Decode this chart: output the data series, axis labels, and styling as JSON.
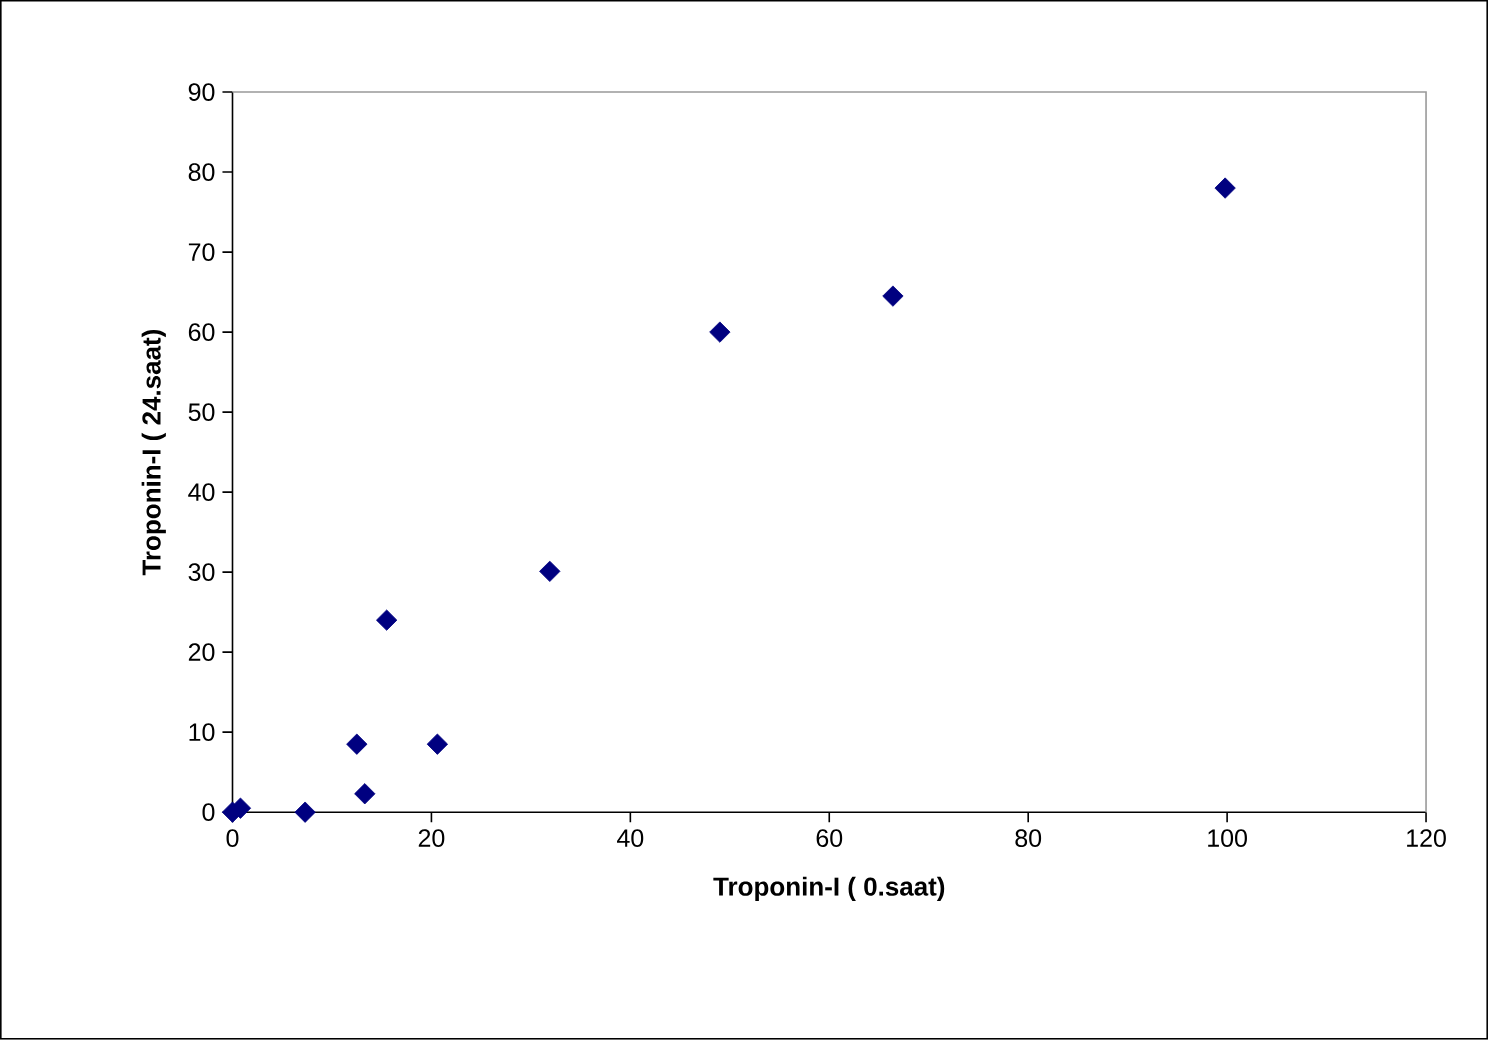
{
  "chart_data": {
    "type": "scatter",
    "xlabel": "Troponin-I ( 0.saat)",
    "ylabel": "Troponin-I ( 24.saat)",
    "x": [
      0,
      0.3,
      0.8,
      7.3,
      12.5,
      13.3,
      15.5,
      20.6,
      31.9,
      49,
      66.4,
      99.8
    ],
    "values": [
      0,
      null,
      0.5,
      0,
      8.5,
      2.3,
      24,
      8.5,
      30.1,
      60,
      64.5,
      78
    ],
    "color": "#000080",
    "marker": "diamond",
    "grid": false,
    "xlim": [
      0,
      120
    ],
    "xticks": [
      0,
      20,
      40,
      60,
      80,
      100,
      120
    ],
    "ylim": [
      0,
      90
    ],
    "yticks": [
      0,
      10,
      20,
      30,
      40,
      50,
      60,
      70,
      80,
      90
    ]
  }
}
